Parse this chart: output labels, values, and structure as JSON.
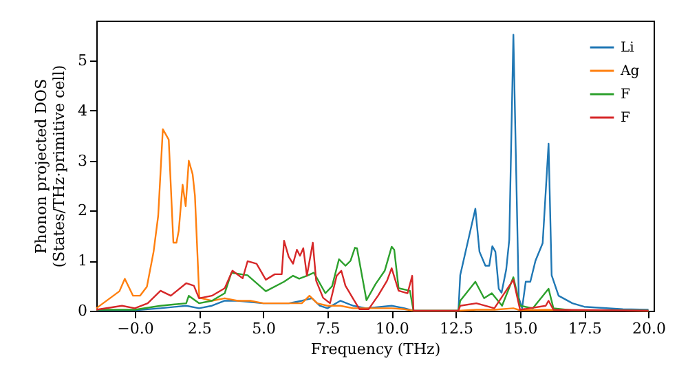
{
  "chart_data": {
    "type": "line",
    "xlabel": "Frequency (THz)",
    "ylabel": "Phonon projected DOS\n(States/THz·primitive cell)",
    "xlim": [
      -1.5,
      20.2
    ],
    "ylim": [
      0,
      5.8
    ],
    "xticks": [
      {
        "value": 0,
        "label": "−0.0"
      },
      {
        "value": 2.5,
        "label": "2.5"
      },
      {
        "value": 5,
        "label": "5.0"
      },
      {
        "value": 7.5,
        "label": "7.5"
      },
      {
        "value": 10,
        "label": "10.0"
      },
      {
        "value": 12.5,
        "label": "12.5"
      },
      {
        "value": 15,
        "label": "15.0"
      },
      {
        "value": 17.5,
        "label": "17.5"
      },
      {
        "value": 20,
        "label": "20.0"
      }
    ],
    "yticks": [
      0,
      1,
      2,
      3,
      4,
      5
    ],
    "legend": "top right",
    "grid": false,
    "line_style": "solid",
    "marker": "none",
    "series": [
      {
        "name": "Li",
        "color": "#1f77b4",
        "x": [
          -1.5,
          0,
          1,
          2,
          2.5,
          3,
          3.5,
          4,
          5,
          6,
          6.5,
          6.9,
          7.2,
          7.5,
          8,
          8.5,
          9,
          10,
          10.5,
          10.85,
          12.6,
          12.67,
          13.26,
          13.42,
          13.65,
          13.8,
          13.92,
          14.04,
          14.17,
          14.28,
          14.46,
          14.58,
          14.74,
          14.95,
          15.08,
          15.22,
          15.4,
          15.6,
          15.88,
          16.11,
          16.23,
          16.5,
          17.04,
          17.5,
          19,
          20
        ],
        "values": [
          0.01,
          0.01,
          0.05,
          0.1,
          0.05,
          0.1,
          0.2,
          0.2,
          0.15,
          0.15,
          0.2,
          0.25,
          0.1,
          0.05,
          0.2,
          0.1,
          0.05,
          0.1,
          0.05,
          0,
          0,
          0.71,
          2.04,
          1.18,
          0.9,
          0.9,
          1.29,
          1.18,
          0.44,
          0.36,
          0.82,
          1.42,
          5.52,
          0.26,
          0.05,
          0.58,
          0.58,
          1.0,
          1.35,
          3.34,
          0.71,
          0.3,
          0.15,
          0.08,
          0.03,
          0.02
        ]
      },
      {
        "name": "Ag",
        "color": "#ff7f0e",
        "x": [
          -1.5,
          -0.6,
          -0.39,
          -0.07,
          0.2,
          0.47,
          0.73,
          0.91,
          1.09,
          1.32,
          1.5,
          1.62,
          1.71,
          1.86,
          1.98,
          2.1,
          2.25,
          2.34,
          2.51,
          3,
          3.5,
          4,
          4.5,
          5,
          5.5,
          6,
          6.5,
          6.8,
          7.1,
          7.5,
          8,
          8.5,
          9,
          10,
          10.5,
          10.85,
          12.6,
          13.3,
          14,
          14.74,
          15,
          16,
          17,
          20
        ],
        "values": [
          0.05,
          0.39,
          0.64,
          0.3,
          0.3,
          0.48,
          1.18,
          1.9,
          3.63,
          3.42,
          1.36,
          1.36,
          1.6,
          2.52,
          2.09,
          3.0,
          2.73,
          2.3,
          0.26,
          0.2,
          0.25,
          0.2,
          0.2,
          0.15,
          0.15,
          0.15,
          0.15,
          0.3,
          0.15,
          0.1,
          0.1,
          0.05,
          0.05,
          0.05,
          0.03,
          0,
          0,
          0.02,
          0.02,
          0.05,
          0.01,
          0.02,
          0.01,
          0
        ]
      },
      {
        "name": "F",
        "color": "#2ca02c",
        "x": [
          -1.5,
          0,
          1,
          2,
          2.1,
          2.5,
          3,
          3.5,
          3.76,
          4.39,
          5.1,
          5.81,
          6.16,
          6.4,
          6.7,
          6.97,
          7.42,
          7.68,
          7.95,
          8.2,
          8.4,
          8.57,
          8.65,
          9.02,
          9.37,
          9.73,
          10.0,
          10.1,
          10.27,
          10.71,
          10.85,
          12.6,
          12.67,
          13.26,
          13.6,
          13.9,
          14.3,
          14.74,
          15.0,
          15.5,
          16.11,
          16.3,
          17,
          20
        ],
        "values": [
          0.02,
          0.02,
          0.1,
          0.15,
          0.3,
          0.15,
          0.2,
          0.35,
          0.76,
          0.71,
          0.39,
          0.58,
          0.7,
          0.64,
          0.7,
          0.76,
          0.35,
          0.49,
          1.03,
          0.9,
          1.0,
          1.26,
          1.25,
          0.21,
          0.53,
          0.8,
          1.28,
          1.22,
          0.45,
          0.4,
          0,
          0,
          0.2,
          0.58,
          0.25,
          0.35,
          0.1,
          0.67,
          0.1,
          0.05,
          0.44,
          0.05,
          0.01,
          0
        ]
      },
      {
        "name": "F",
        "color": "#d62728",
        "x": [
          -1.5,
          -0.5,
          0,
          0.5,
          1.0,
          1.4,
          2.0,
          2.3,
          2.5,
          3.0,
          3.5,
          3.8,
          4.2,
          4.39,
          4.74,
          5.1,
          5.45,
          5.72,
          5.81,
          5.99,
          6.16,
          6.31,
          6.43,
          6.56,
          6.7,
          6.93,
          7.06,
          7.33,
          7.6,
          7.86,
          8.04,
          8.2,
          8.49,
          8.75,
          9.1,
          9.47,
          9.82,
          10.0,
          10.27,
          10.62,
          10.8,
          10.85,
          12.6,
          12.67,
          13.3,
          14,
          14.74,
          15,
          16,
          16.11,
          16.3,
          20
        ],
        "values": [
          0.02,
          0.1,
          0.05,
          0.15,
          0.4,
          0.3,
          0.55,
          0.5,
          0.25,
          0.3,
          0.45,
          0.8,
          0.65,
          0.99,
          0.94,
          0.62,
          0.73,
          0.73,
          1.4,
          1.08,
          0.94,
          1.22,
          1.1,
          1.25,
          0.7,
          1.36,
          0.6,
          0.26,
          0.15,
          0.7,
          0.8,
          0.5,
          0.25,
          0.03,
          0.03,
          0.3,
          0.6,
          0.85,
          0.4,
          0.35,
          0.7,
          0,
          0,
          0.1,
          0.15,
          0.05,
          0.62,
          0.02,
          0.1,
          0.2,
          0.02,
          0
        ]
      }
    ]
  }
}
